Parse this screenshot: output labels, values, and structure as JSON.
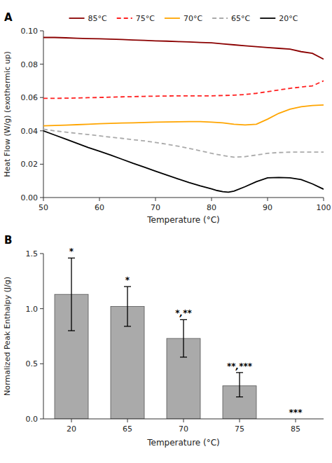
{
  "chart_data": [
    {
      "type": "line",
      "title": "A",
      "xlabel": "Temperature (°C)",
      "ylabel": "Heat Flow (W/g) (exothermic up)",
      "xlim": [
        50,
        100
      ],
      "ylim": [
        0,
        0.1
      ],
      "xticks": [
        50,
        60,
        70,
        80,
        90,
        100
      ],
      "yticks": [
        {
          "value": 0,
          "label": "0.00"
        },
        {
          "value": 0.02,
          "label": "0.02"
        },
        {
          "value": 0.04,
          "label": "0.04"
        },
        {
          "value": 0.06,
          "label": "0.06"
        },
        {
          "value": 0.08,
          "label": "0.08"
        },
        {
          "value": 0.1,
          "label": "0.10"
        }
      ],
      "legend": "top",
      "series": [
        {
          "name": "85°C",
          "color": "#8B0000",
          "line_style": "solid",
          "x": [
            50,
            52,
            54,
            56,
            58,
            60,
            62,
            64,
            66,
            68,
            70,
            72,
            74,
            76,
            78,
            80,
            82,
            84,
            86,
            88,
            90,
            92,
            94,
            96,
            98,
            100
          ],
          "values": [
            0.096,
            0.096,
            0.0958,
            0.0955,
            0.0953,
            0.0952,
            0.095,
            0.0948,
            0.0945,
            0.0943,
            0.094,
            0.0938,
            0.0935,
            0.0933,
            0.093,
            0.0928,
            0.0922,
            0.0916,
            0.091,
            0.0905,
            0.09,
            0.0895,
            0.089,
            0.0875,
            0.0865,
            0.083
          ]
        },
        {
          "name": "75°C",
          "color": "#FF2020",
          "line_style": "dashed",
          "x": [
            50,
            52,
            54,
            56,
            58,
            60,
            62,
            64,
            66,
            68,
            70,
            72,
            74,
            76,
            78,
            80,
            82,
            84,
            86,
            88,
            90,
            92,
            94,
            96,
            98,
            100
          ],
          "values": [
            0.0595,
            0.0595,
            0.0596,
            0.0597,
            0.0599,
            0.06,
            0.0602,
            0.0604,
            0.0605,
            0.0607,
            0.0608,
            0.0609,
            0.061,
            0.061,
            0.061,
            0.061,
            0.0612,
            0.0614,
            0.0618,
            0.0625,
            0.0635,
            0.0645,
            0.0655,
            0.0663,
            0.067,
            0.07
          ]
        },
        {
          "name": "70°C",
          "color": "#FFA500",
          "line_style": "solid",
          "x": [
            50,
            52,
            54,
            56,
            58,
            60,
            62,
            64,
            66,
            68,
            70,
            72,
            74,
            76,
            78,
            80,
            82,
            84,
            86,
            88,
            90,
            92,
            94,
            96,
            98,
            100
          ],
          "values": [
            0.043,
            0.0432,
            0.0434,
            0.0437,
            0.044,
            0.0443,
            0.0445,
            0.0447,
            0.0448,
            0.045,
            0.0452,
            0.0453,
            0.0454,
            0.0455,
            0.0455,
            0.0452,
            0.0448,
            0.044,
            0.0435,
            0.044,
            0.047,
            0.0505,
            0.053,
            0.0545,
            0.0552,
            0.0555
          ]
        },
        {
          "name": "65°C",
          "color": "#AAAAAA",
          "line_style": "dashed",
          "x": [
            50,
            52,
            54,
            56,
            58,
            60,
            62,
            64,
            66,
            68,
            70,
            72,
            74,
            76,
            78,
            80,
            82,
            84,
            86,
            88,
            90,
            92,
            94,
            96,
            98,
            100
          ],
          "values": [
            0.041,
            0.04,
            0.0392,
            0.0385,
            0.0378,
            0.037,
            0.0362,
            0.0355,
            0.0347,
            0.034,
            0.033,
            0.032,
            0.0308,
            0.0295,
            0.028,
            0.0265,
            0.0252,
            0.0242,
            0.0245,
            0.0255,
            0.0265,
            0.027,
            0.0272,
            0.0273,
            0.0273,
            0.0273
          ]
        },
        {
          "name": "20°C",
          "color": "#000000",
          "line_style": "solid",
          "x": [
            50,
            52,
            54,
            56,
            58,
            60,
            62,
            64,
            66,
            68,
            70,
            72,
            74,
            76,
            78,
            80,
            81,
            82,
            83,
            84,
            86,
            88,
            90,
            92,
            94,
            96,
            98,
            100
          ],
          "values": [
            0.04,
            0.0375,
            0.035,
            0.0325,
            0.03,
            0.0278,
            0.0255,
            0.023,
            0.0205,
            0.0182,
            0.0158,
            0.0135,
            0.0112,
            0.009,
            0.007,
            0.0052,
            0.0042,
            0.0035,
            0.0032,
            0.0038,
            0.0065,
            0.0095,
            0.0118,
            0.012,
            0.0118,
            0.0108,
            0.0082,
            0.005
          ]
        }
      ]
    },
    {
      "type": "bar",
      "title": "B",
      "xlabel": "Temperature (°C)",
      "ylabel": "Normalized Peak Enthalpy (J/g)",
      "ylim": [
        0,
        1.5
      ],
      "yticks": [
        {
          "value": 0,
          "label": "0.0"
        },
        0.5,
        {
          "value": 1,
          "label": "1.0"
        },
        1.5
      ],
      "color": "#AAAAAA",
      "categories": [
        "20",
        "65",
        "70",
        "75",
        "85"
      ],
      "values": [
        1.13,
        1.02,
        0.73,
        0.3,
        0.0
      ],
      "errors_upper": [
        0.33,
        0.18,
        0.17,
        0.12,
        0.0
      ],
      "errors_lower": [
        0.33,
        0.18,
        0.17,
        0.1,
        0.0
      ],
      "annotations": [
        "*",
        "*",
        "*,**",
        "**,***",
        "***"
      ]
    }
  ]
}
